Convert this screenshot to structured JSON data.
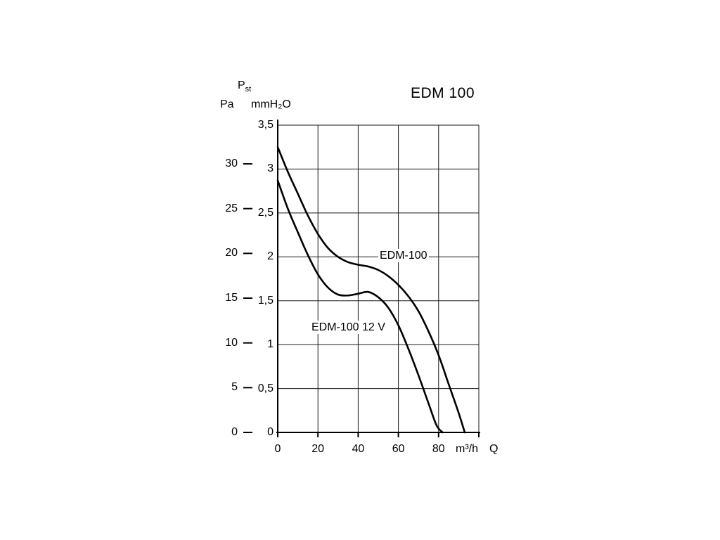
{
  "header": {
    "title": "EDM 100",
    "pst_main": "P",
    "pst_sub": "st",
    "pa_unit": "Pa",
    "mmh2o_unit": "mmH₂O"
  },
  "curves": {
    "edm100_label": "EDM-100",
    "edm100_12v_label": "EDM-100 12 V"
  },
  "x_axis": {
    "unit": "m³/h",
    "symbol": "Q"
  },
  "colors": {
    "curve": "#000000",
    "grid": "#1a1a1a",
    "axis": "#000000",
    "text": "#000000",
    "background": "#ffffff"
  },
  "chart_data": {
    "type": "line",
    "title": "EDM 100",
    "xlabel": "Q (m³/h)",
    "ylabel_left": "Pst (Pa)",
    "ylabel_right": "Pst (mmH₂O)",
    "xlim": [
      0,
      100
    ],
    "ylim_mm": [
      0,
      3.5
    ],
    "ylim_pa": [
      0,
      30
    ],
    "grid": true,
    "pa_per_mmh2o": 9.80665,
    "x_gridlines": [
      0,
      20,
      40,
      60,
      80,
      100
    ],
    "y_gridlines_mm": [
      0,
      0.5,
      1,
      1.5,
      2,
      2.5,
      3,
      3.5
    ],
    "x_ticks": [
      {
        "value": 0,
        "label": "0"
      },
      {
        "value": 20,
        "label": "20"
      },
      {
        "value": 40,
        "label": "40"
      },
      {
        "value": 60,
        "label": "60"
      },
      {
        "value": 80,
        "label": "80"
      }
    ],
    "mm_ticks": [
      {
        "value": 0,
        "label": "0"
      },
      {
        "value": 0.5,
        "label": "0,5"
      },
      {
        "value": 1,
        "label": "1"
      },
      {
        "value": 1.5,
        "label": "1,5"
      },
      {
        "value": 2,
        "label": "2"
      },
      {
        "value": 2.5,
        "label": "2,5"
      },
      {
        "value": 3,
        "label": "3"
      },
      {
        "value": 3.5,
        "label": "3,5"
      }
    ],
    "pa_ticks": [
      {
        "value": 0,
        "label": "0"
      },
      {
        "value": 5,
        "label": "5"
      },
      {
        "value": 10,
        "label": "10"
      },
      {
        "value": 15,
        "label": "15"
      },
      {
        "value": 20,
        "label": "20"
      },
      {
        "value": 25,
        "label": "25"
      },
      {
        "value": 30,
        "label": "30"
      }
    ],
    "series": [
      {
        "name": "EDM-100",
        "points": [
          [
            0,
            3.25
          ],
          [
            5,
            2.97
          ],
          [
            10,
            2.72
          ],
          [
            15,
            2.47
          ],
          [
            20,
            2.26
          ],
          [
            25,
            2.1
          ],
          [
            30,
            2.0
          ],
          [
            35,
            1.94
          ],
          [
            40,
            1.91
          ],
          [
            45,
            1.89
          ],
          [
            50,
            1.85
          ],
          [
            55,
            1.78
          ],
          [
            60,
            1.68
          ],
          [
            65,
            1.55
          ],
          [
            70,
            1.38
          ],
          [
            75,
            1.15
          ],
          [
            80,
            0.88
          ],
          [
            85,
            0.55
          ],
          [
            90,
            0.22
          ],
          [
            93,
            0
          ]
        ]
      },
      {
        "name": "EDM-100 12 V",
        "points": [
          [
            0,
            2.87
          ],
          [
            5,
            2.55
          ],
          [
            10,
            2.28
          ],
          [
            15,
            2.02
          ],
          [
            20,
            1.8
          ],
          [
            25,
            1.65
          ],
          [
            30,
            1.57
          ],
          [
            35,
            1.56
          ],
          [
            40,
            1.58
          ],
          [
            45,
            1.6
          ],
          [
            50,
            1.54
          ],
          [
            55,
            1.42
          ],
          [
            60,
            1.22
          ],
          [
            65,
            0.95
          ],
          [
            70,
            0.65
          ],
          [
            75,
            0.33
          ],
          [
            79,
            0.08
          ],
          [
            82,
            0
          ]
        ]
      }
    ]
  }
}
